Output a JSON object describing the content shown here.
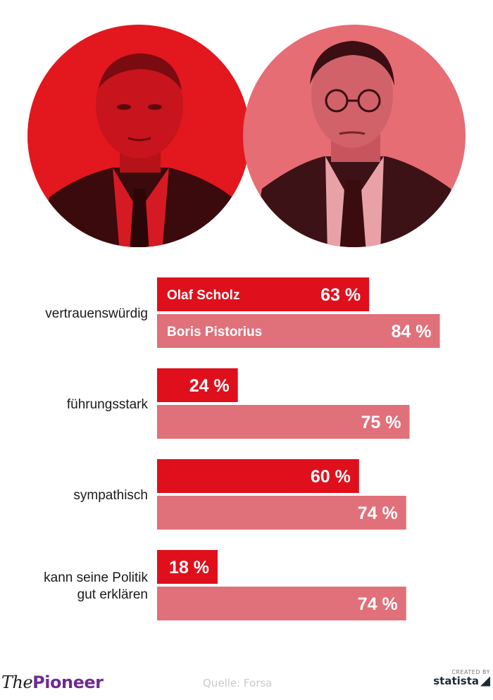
{
  "colors": {
    "scholz": "#df0f1c",
    "pistorius": "#e07079",
    "portrait_left_bg": "#e3171e",
    "portrait_right_bg": "#e66d74",
    "label_text": "#1a1a1a"
  },
  "portraits": {
    "left": {
      "icon": "person-portrait-icon",
      "tint": "red"
    },
    "right": {
      "icon": "person-portrait-icon",
      "tint": "pink"
    }
  },
  "chart_data": {
    "type": "bar",
    "orientation": "horizontal",
    "categories": [
      "vertrauenswürdig",
      "führungsstark",
      "sympathisch",
      "kann seine Politik gut erklären"
    ],
    "series": [
      {
        "name": "Olaf Scholz",
        "values": [
          63,
          24,
          60,
          18
        ],
        "color": "#df0f1c"
      },
      {
        "name": "Boris Pistorius",
        "values": [
          84,
          75,
          74,
          74
        ],
        "color": "#e07079"
      }
    ],
    "value_suffix": " %",
    "xlim": [
      0,
      100
    ],
    "grid": false,
    "legend": "inside-first-bars"
  },
  "footer": {
    "brand_the": "The",
    "brand_pioneer": "Pioneer",
    "source": "Quelle: Forsa",
    "statista_created": "CREATED BY",
    "statista_logo": "statista"
  }
}
